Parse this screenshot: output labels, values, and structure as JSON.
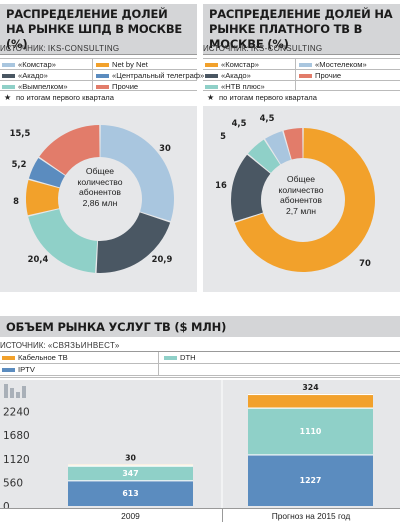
{
  "panel_left": {
    "title_line1": "РАСПРЕДЕЛЕНИЕ ДОЛЕЙ",
    "title_line2": "НА РЫНКЕ ШПД В МОСКВЕ (%)",
    "source_label": "ИСТОЧНИК:",
    "source_name": "IKS-CONSULTING",
    "footnote_mark": "★",
    "footnote": "по итогам первого квартала",
    "center_line1": "Общее",
    "center_line2": "количество",
    "center_line3": "абонентов",
    "center_line4": "2,86 млн"
  },
  "panel_right": {
    "title_line1": "РАСПРЕДЕЛЕНИЕ ДОЛЕЙ НА",
    "title_line2": "РЫНКЕ ПЛАТНОГО ТВ В МОСКВЕ (%)",
    "source_label": "ИСТОЧНИК:",
    "source_name": "IKS-CONSULTING",
    "footnote_mark": "★",
    "footnote": "по итогам первого квартала",
    "center_line1": "Общее",
    "center_line2": "количество",
    "center_line3": "абонентов",
    "center_line4": "2,7 млн"
  },
  "panel_bottom": {
    "title": "ОБЪЕМ РЫНКА УСЛУГ ТВ ($ МЛН)",
    "source_label": "ИСТОЧНИК:",
    "source_name": "«СВЯЗЬИНВЕСТ»"
  },
  "chart_data": [
    {
      "type": "pie",
      "categories": [
        "«Комстар»",
        "«Акадо»",
        "«Вымпелком»",
        "Net by Net",
        "«Центральный телеграф»",
        "Прочие"
      ],
      "values": [
        30,
        20.9,
        20.4,
        8,
        5.2,
        15.5
      ],
      "labels": [
        "30",
        "20,9",
        "20,4",
        "8",
        "5,2",
        "15,5"
      ],
      "colors": [
        "#a9c6df",
        "#4a5763",
        "#8fd0c8",
        "#f2a12b",
        "#5b8cbf",
        "#e27c6a"
      ]
    },
    {
      "type": "pie",
      "categories": [
        "«Комстар»",
        "«Акадо»",
        "«НТВ плюс»",
        "«Мостелеком»",
        "Прочие"
      ],
      "values": [
        70,
        16,
        5,
        4.5,
        4.5
      ],
      "labels": [
        "70",
        "16",
        "5",
        "4,5",
        "4,5"
      ],
      "colors": [
        "#f2a12b",
        "#4a5763",
        "#8fd0c8",
        "#a9c6df",
        "#e27c6a"
      ]
    },
    {
      "type": "bar",
      "categories": [
        "2009",
        "Прогноз на 2015 год"
      ],
      "series": [
        {
          "name": "IPTV",
          "values": [
            613,
            1227
          ],
          "color": "#5b8cbf"
        },
        {
          "name": "DTH",
          "values": [
            347,
            1110
          ],
          "color": "#8fd0c8"
        },
        {
          "name": "Кабельное ТВ",
          "values": [
            30,
            324
          ],
          "color": "#f2a12b"
        }
      ],
      "yticks": [
        "0",
        "560",
        "1120",
        "1680",
        "2240"
      ],
      "ylim": [
        0,
        2800
      ]
    }
  ]
}
